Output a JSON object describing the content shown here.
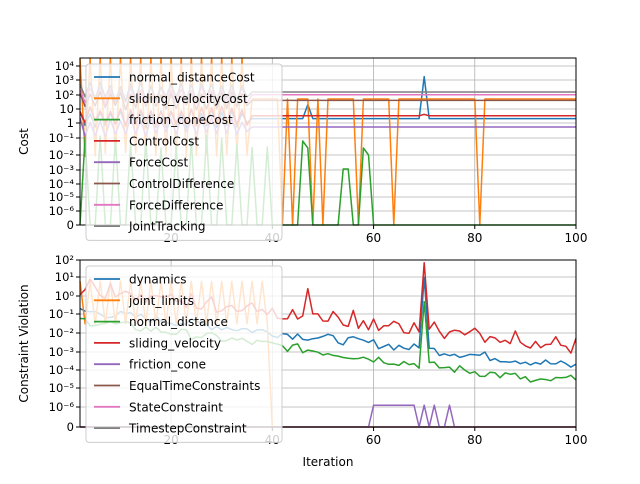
{
  "chart_data": [
    {
      "type": "line",
      "ylabel": "Cost",
      "xlabel": "",
      "xlim": [
        2,
        100
      ],
      "y_scale": "symlog",
      "y_ticks": [
        "0",
        "10⁻⁶",
        "10⁻⁵",
        "10⁻⁴",
        "10⁻³",
        "10⁻²",
        "10⁻¹",
        "1",
        "10",
        "10²",
        "10³",
        "10⁴"
      ],
      "y_tick_values": [
        0,
        -6,
        -5,
        -4,
        -3,
        -2,
        -1,
        0,
        1,
        2,
        3,
        4
      ],
      "x_ticks": [
        20,
        40,
        60,
        80,
        100
      ],
      "grid": true,
      "legend": "top-left",
      "series": [
        {
          "name": "normal_distanceCost",
          "color": "#1f77b4",
          "base": 0.6,
          "spikes": [
            [
              47,
              1.6
            ],
            [
              70,
              3.6
            ],
            [
              71,
              0.6
            ]
          ]
        },
        {
          "name": "sliding_velocityCost",
          "color": "#ff7f0e",
          "base": 2.0,
          "drops": [
            42,
            44,
            48,
            50,
            57,
            64,
            81
          ]
        },
        {
          "name": "friction_coneCost",
          "color": "#2ca02c",
          "base": -5.0,
          "peaks": [
            [
              46,
              -1.0
            ],
            [
              47,
              -1.5
            ],
            [
              54,
              -3.0
            ],
            [
              55,
              -3.0
            ],
            [
              58,
              -1.5
            ],
            [
              59,
              -2.0
            ]
          ]
        },
        {
          "name": "ControlCost",
          "color": "#d62728",
          "base": 0.8,
          "spikes": [
            [
              70,
              0.9
            ]
          ]
        },
        {
          "name": "ForceCost",
          "color": "#9467bd",
          "base": 0.0
        },
        {
          "name": "ControlDifference",
          "color": "#8c564b",
          "base": 1.9
        },
        {
          "name": "ForceDifference",
          "color": "#e377c2",
          "base": 2.3
        },
        {
          "name": "JointTracking",
          "color": "#7f7f7f",
          "base": 2.5
        }
      ]
    },
    {
      "type": "line",
      "ylabel": "Constraint Violation",
      "xlabel": "Iteration",
      "xlim": [
        2,
        100
      ],
      "y_scale": "symlog",
      "y_ticks": [
        "0",
        "10⁻⁶",
        "10⁻⁵",
        "10⁻⁴",
        "10⁻³",
        "10⁻²",
        "10⁻¹",
        "10⁰",
        "10¹",
        "10²"
      ],
      "y_tick_values": [
        0,
        -6,
        -5,
        -4,
        -3,
        -2,
        -1,
        0,
        1,
        2
      ],
      "x_ticks": [
        20,
        40,
        60,
        80,
        100
      ],
      "grid": true,
      "legend": "top-left",
      "series": [
        {
          "name": "dynamics",
          "color": "#1f77b4"
        },
        {
          "name": "joint_limits",
          "color": "#ff7f0e"
        },
        {
          "name": "normal_distance",
          "color": "#2ca02c"
        },
        {
          "name": "sliding_velocity",
          "color": "#d62728"
        },
        {
          "name": "friction_cone",
          "color": "#9467bd"
        },
        {
          "name": "EqualTimeConstraints",
          "color": "#8c564b"
        },
        {
          "name": "StateConstraint",
          "color": "#e377c2"
        },
        {
          "name": "TimestepConstraint",
          "color": "#7f7f7f"
        }
      ]
    }
  ]
}
